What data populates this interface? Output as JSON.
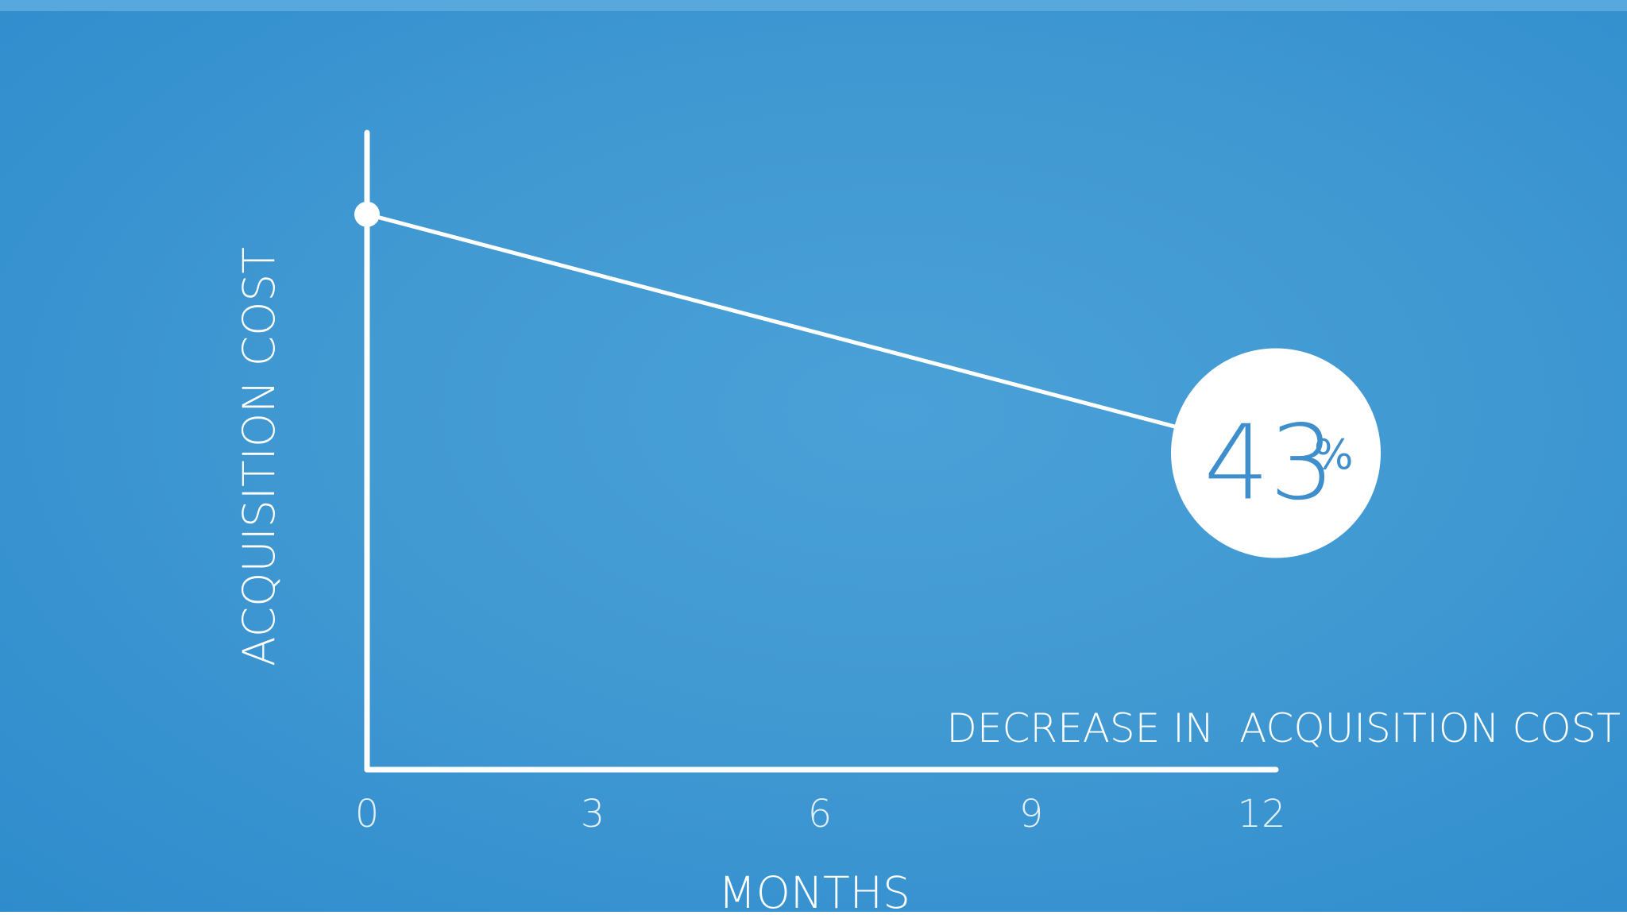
{
  "chart_data": {
    "type": "line",
    "title": "",
    "xlabel": "MONTHS",
    "ylabel": "ACQUISITION COST",
    "x_ticks": [
      "0",
      "3",
      "6",
      "9",
      "12"
    ],
    "xlim": [
      0,
      12
    ],
    "ylim": [
      0,
      1.2
    ],
    "grid": false,
    "legend": "none",
    "series": [
      {
        "x": [
          0,
          12
        ],
        "y": [
          1.0,
          0.57
        ]
      }
    ],
    "annotation": {
      "value": "43",
      "unit": "%",
      "caption": "DECREASE IN  ACQUISITION COST"
    }
  },
  "colors": {
    "background": "#4199d2",
    "line": "#ffffff",
    "callout_circle": "#ffffff",
    "callout_text": "#3e8fcc"
  }
}
